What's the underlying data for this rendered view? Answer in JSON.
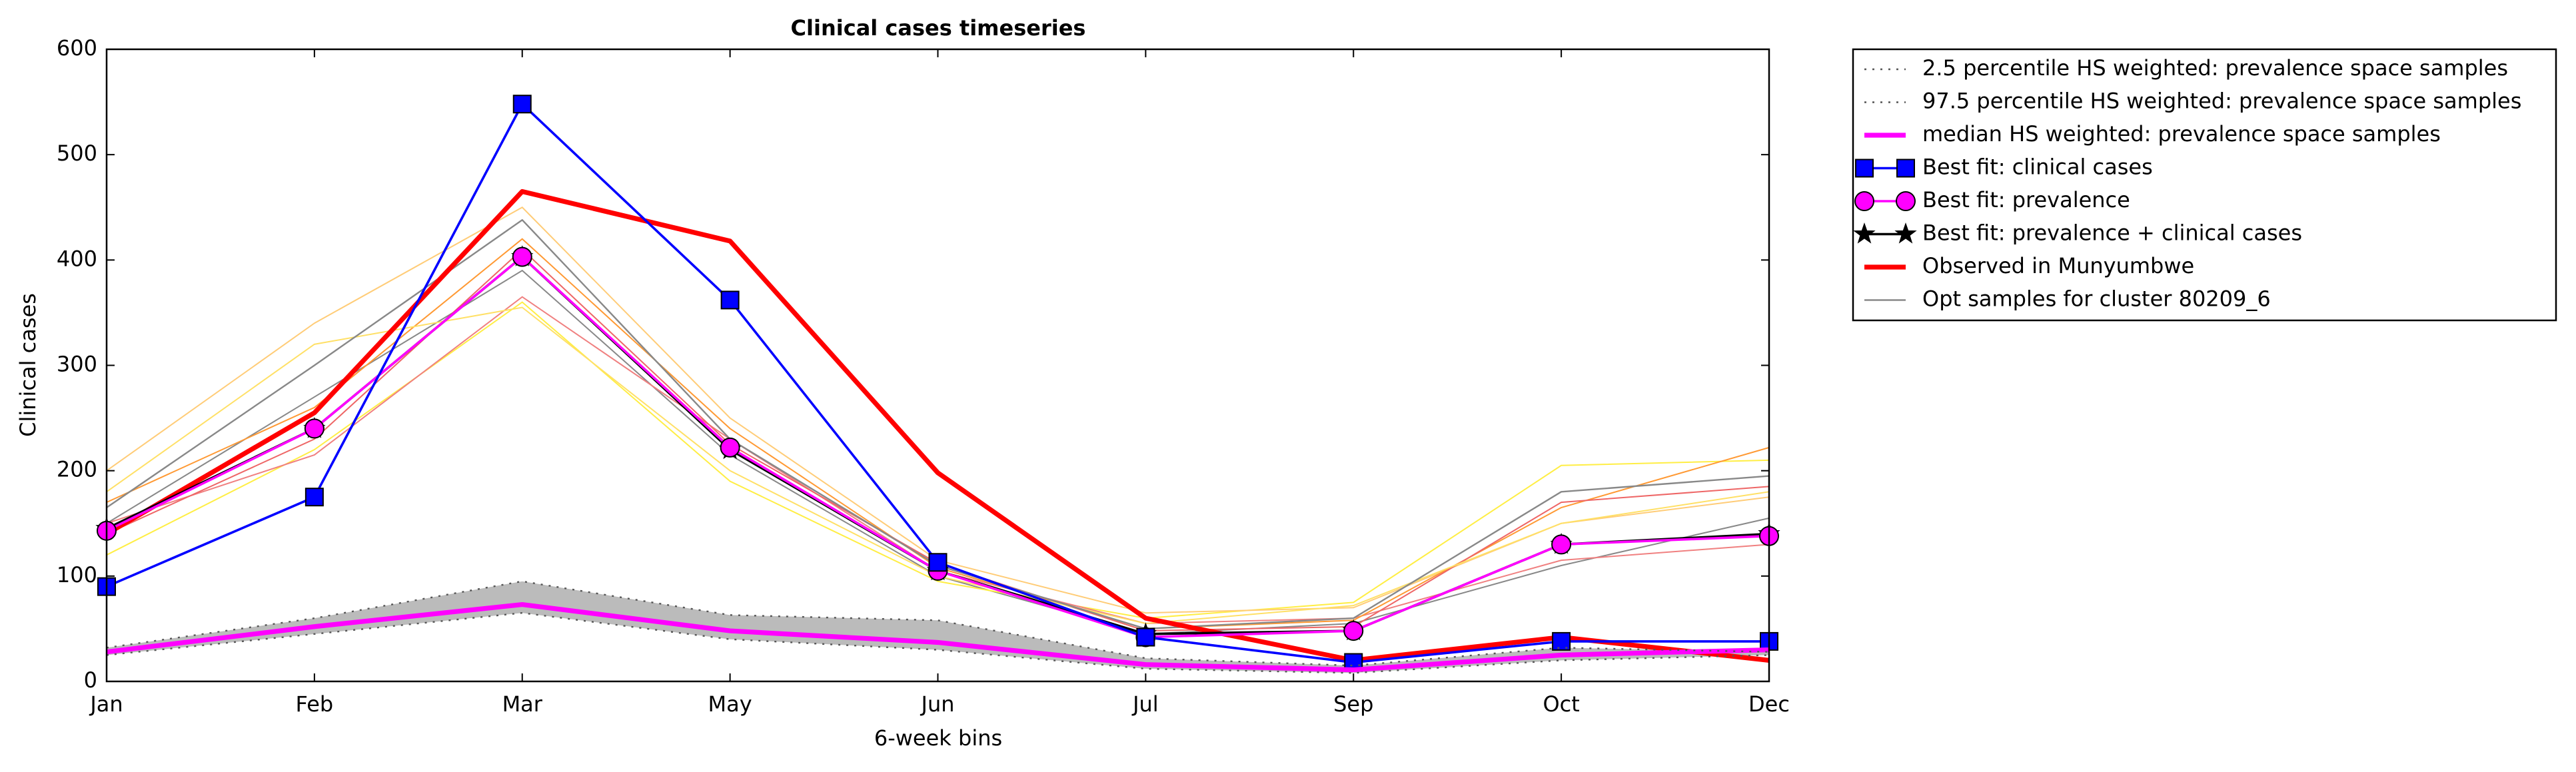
{
  "chart_data": {
    "type": "line",
    "title": "Clinical cases timeseries",
    "x_label": "6-week bins",
    "y_label": "Clinical cases",
    "categories": [
      "Jan",
      "Feb",
      "Mar",
      "May",
      "Jun",
      "Jul",
      "Sep",
      "Oct",
      "Dec"
    ],
    "ylim": [
      0,
      600
    ],
    "yticks": [
      0,
      100,
      200,
      300,
      400,
      500,
      600
    ],
    "band_color": "#bbbbbb",
    "series": [
      {
        "name": "2.5 percentile HS weighted: prevalence space samples",
        "color": "#555555",
        "linestyle": "dotted",
        "linewidth": 1,
        "values": [
          25,
          45,
          65,
          40,
          30,
          12,
          8,
          20,
          25
        ]
      },
      {
        "name": "97.5 percentile HS weighted: prevalence space samples",
        "color": "#555555",
        "linestyle": "dotted",
        "linewidth": 1,
        "values": [
          32,
          60,
          95,
          63,
          58,
          22,
          15,
          32,
          28
        ]
      },
      {
        "name": "median HS weighted: prevalence space samples",
        "color": "#ff00ff",
        "linestyle": "solid",
        "linewidth": 3,
        "values": [
          28,
          52,
          73,
          48,
          37,
          16,
          11,
          25,
          30
        ]
      },
      {
        "name": "Best fit: clinical cases",
        "color": "#0000ff",
        "linestyle": "solid",
        "linewidth": 1.5,
        "marker": "square",
        "values": [
          90,
          175,
          548,
          362,
          113,
          42,
          18,
          38,
          38
        ]
      },
      {
        "name": "Best fit: prevalence",
        "color": "#ff00ff",
        "linestyle": "solid",
        "linewidth": 1.5,
        "marker": "circle",
        "values": [
          143,
          240,
          403,
          222,
          105,
          42,
          48,
          130,
          138
        ]
      },
      {
        "name": "Best fit: prevalence + clinical cases",
        "color": "#000000",
        "linestyle": "solid",
        "linewidth": 1.5,
        "marker": "star",
        "values": [
          145,
          240,
          403,
          220,
          105,
          45,
          48,
          130,
          140
        ]
      },
      {
        "name": "Observed in Munyumbwe",
        "color": "#ff0000",
        "linestyle": "solid",
        "linewidth": 3,
        "values": [
          140,
          255,
          465,
          418,
          198,
          60,
          20,
          42,
          20
        ]
      },
      {
        "name": "Opt samples for cluster 80209_6",
        "color": "#888888",
        "linestyle": "solid",
        "linewidth": 1,
        "values": [
          165,
          300,
          438,
          230,
          110,
          50,
          60,
          180,
          195
        ]
      }
    ],
    "other_samples": [
      {
        "color": "#888888",
        "values": [
          150,
          270,
          390,
          215,
          100,
          45,
          55,
          110,
          155
        ]
      },
      {
        "color": "#ffee44",
        "values": [
          120,
          220,
          360,
          190,
          95,
          60,
          75,
          205,
          210
        ]
      },
      {
        "color": "#ffcc77",
        "values": [
          200,
          340,
          450,
          250,
          115,
          65,
          70,
          150,
          175
        ]
      },
      {
        "color": "#f08080",
        "values": [
          150,
          215,
          365,
          230,
          105,
          55,
          60,
          115,
          130
        ]
      },
      {
        "color": "#ff9933",
        "values": [
          170,
          260,
          420,
          240,
          108,
          50,
          58,
          165,
          222
        ]
      },
      {
        "color": "#ee6666",
        "values": [
          140,
          230,
          410,
          225,
          112,
          48,
          52,
          170,
          185
        ]
      },
      {
        "color": "#ffe066",
        "values": [
          180,
          320,
          355,
          200,
          100,
          55,
          72,
          150,
          180
        ]
      }
    ]
  }
}
